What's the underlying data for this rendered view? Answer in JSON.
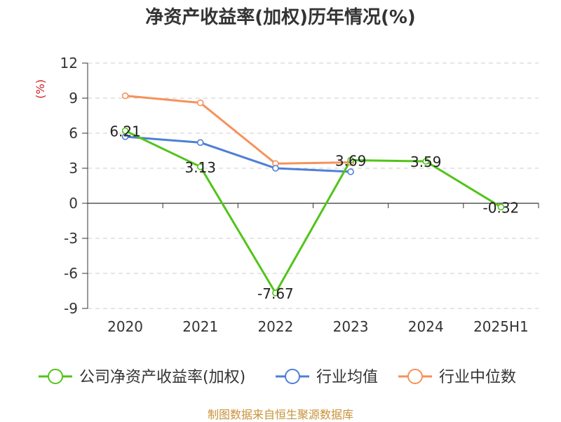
{
  "chart_data": {
    "type": "line",
    "title": "净资产收益率(加权)历年情况(%)",
    "ylabel": "(%)",
    "categories": [
      "2020",
      "2021",
      "2022",
      "2023",
      "2024",
      "2025H1"
    ],
    "ylim": [
      -9,
      12
    ],
    "yticks": [
      12,
      9,
      6,
      3,
      0,
      -3,
      -6,
      -9
    ],
    "grid": true,
    "legend_position": "bottom",
    "series": [
      {
        "name": "公司净资产收益率(加权)",
        "color": "#52c41a",
        "values": [
          6.21,
          3.13,
          -7.67,
          3.69,
          3.59,
          -0.32
        ],
        "labels": [
          "6.21",
          "3.13",
          "-7.67",
          "3.69",
          "3.59",
          "-0.32"
        ]
      },
      {
        "name": "行业均值",
        "color": "#4e7fd6",
        "values": [
          5.7,
          5.2,
          3.0,
          2.7,
          null,
          null
        ]
      },
      {
        "name": "行业中位数",
        "color": "#f5925a",
        "values": [
          9.2,
          8.6,
          3.4,
          3.5,
          null,
          null
        ]
      }
    ]
  },
  "source": "制图数据来自恒生聚源数据库"
}
